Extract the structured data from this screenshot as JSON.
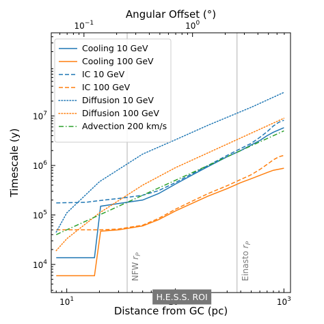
{
  "chart_data": {
    "type": "line",
    "title": "",
    "xlabel": "Distance from GC (pc)",
    "ylabel": "Timescale (y)",
    "top_xlabel": "Angular Offset (°)",
    "xscale": "log",
    "yscale": "log",
    "xlim": [
      7.2,
      1150
    ],
    "ylim": [
      2700,
      480000000
    ],
    "x_ticks": [
      {
        "value": 10,
        "base": "10",
        "exp": "1"
      },
      {
        "value": 100,
        "base": "10",
        "exp": "2"
      },
      {
        "value": 1000,
        "base": "10",
        "exp": "3"
      }
    ],
    "y_ticks": [
      {
        "value": 10000,
        "base": "10",
        "exp": "4"
      },
      {
        "value": 100000,
        "base": "10",
        "exp": "5"
      },
      {
        "value": 1000000,
        "base": "10",
        "exp": "6"
      },
      {
        "value": 10000000,
        "base": "10",
        "exp": "7"
      }
    ],
    "top_ticks": [
      {
        "value_deg": 0.1,
        "base": "10",
        "exp": "−1"
      },
      {
        "value_deg": 1,
        "base": "10",
        "exp": "0"
      }
    ],
    "pc_per_degree": 144,
    "grid": false,
    "legend_position": "top-left",
    "vertical_lines": [
      {
        "x": 36,
        "label_main": "NFW",
        "label_sym": "r",
        "label_sub": "P"
      },
      {
        "x": 370,
        "label_main": "Einasto",
        "label_sym": "r",
        "label_sub": "P"
      }
    ],
    "annotation_box": {
      "text": "H.E.S.S. ROI",
      "x_center": 115,
      "y_center": 2200
    },
    "series": [
      {
        "name": "Cooling 10 GeV",
        "color": "#1f77b4",
        "dash": "solid",
        "points": [
          [
            8,
            13700
          ],
          [
            18,
            13700
          ],
          [
            20.5,
            150000
          ],
          [
            30,
            170000
          ],
          [
            50,
            200000
          ],
          [
            70,
            270000
          ],
          [
            100,
            420000
          ],
          [
            150,
            680000
          ],
          [
            200,
            950000
          ],
          [
            300,
            1500000
          ],
          [
            400,
            2000000
          ],
          [
            500,
            2600000
          ],
          [
            600,
            3200000
          ],
          [
            700,
            4000000
          ],
          [
            800,
            4700000
          ],
          [
            1000,
            5800000
          ]
        ]
      },
      {
        "name": "Cooling 100 GeV",
        "color": "#ff7f0e",
        "dash": "solid",
        "points": [
          [
            8,
            5900
          ],
          [
            18,
            5900
          ],
          [
            20.5,
            47000
          ],
          [
            30,
            50000
          ],
          [
            50,
            60000
          ],
          [
            70,
            80000
          ],
          [
            100,
            120000
          ],
          [
            150,
            180000
          ],
          [
            200,
            240000
          ],
          [
            300,
            340000
          ],
          [
            400,
            450000
          ],
          [
            500,
            540000
          ],
          [
            600,
            630000
          ],
          [
            700,
            720000
          ],
          [
            800,
            800000
          ],
          [
            1000,
            880000
          ]
        ]
      },
      {
        "name": "IC 10 GeV",
        "color": "#1f77b4",
        "dash": "dashed",
        "points": [
          [
            8,
            175000
          ],
          [
            15,
            180000
          ],
          [
            20,
            195000
          ],
          [
            30,
            215000
          ],
          [
            50,
            250000
          ],
          [
            70,
            310000
          ],
          [
            100,
            450000
          ],
          [
            150,
            720000
          ],
          [
            200,
            1000000
          ],
          [
            300,
            1600000
          ],
          [
            400,
            2200000
          ],
          [
            500,
            2800000
          ],
          [
            600,
            3700000
          ],
          [
            700,
            4800000
          ],
          [
            800,
            6300000
          ],
          [
            900,
            7500000
          ],
          [
            1000,
            8200000
          ]
        ]
      },
      {
        "name": "IC 100 GeV",
        "color": "#ff7f0e",
        "dash": "dashed",
        "points": [
          [
            8,
            50000
          ],
          [
            20,
            50000
          ],
          [
            30,
            52000
          ],
          [
            50,
            62000
          ],
          [
            70,
            85000
          ],
          [
            100,
            130000
          ],
          [
            150,
            200000
          ],
          [
            200,
            270000
          ],
          [
            300,
            390000
          ],
          [
            400,
            520000
          ],
          [
            500,
            650000
          ],
          [
            600,
            830000
          ],
          [
            700,
            1050000
          ],
          [
            800,
            1300000
          ],
          [
            900,
            1500000
          ],
          [
            1000,
            1600000
          ]
        ]
      },
      {
        "name": "Diffusion 10 GeV",
        "color": "#1f77b4",
        "dash": "dotted",
        "points": [
          [
            8,
            45000
          ],
          [
            10,
            110000
          ],
          [
            20,
            470000
          ],
          [
            50,
            1700000
          ],
          [
            100,
            3300000
          ],
          [
            200,
            6500000
          ],
          [
            500,
            15000000
          ],
          [
            1000,
            30000000
          ]
        ]
      },
      {
        "name": "Diffusion 100 GeV",
        "color": "#ff7f0e",
        "dash": "dotted",
        "points": [
          [
            8,
            19000
          ],
          [
            10,
            33000
          ],
          [
            20,
            110000
          ],
          [
            50,
            400000
          ],
          [
            100,
            900000
          ],
          [
            200,
            1800000
          ],
          [
            500,
            4500000
          ],
          [
            1000,
            9000000
          ]
        ]
      },
      {
        "name": "Advection 200 km/s",
        "color": "#2ca02c",
        "dash": "dashdot",
        "points": [
          [
            8,
            40000
          ],
          [
            1000,
            5000000
          ]
        ]
      }
    ]
  }
}
